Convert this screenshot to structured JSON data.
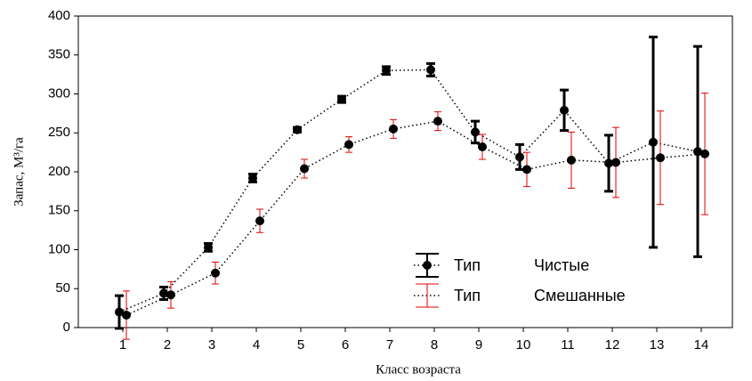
{
  "chart_data": {
    "type": "errorbar-line",
    "xlabel": "Класс возраста",
    "ylabel": "Запас, М³/га",
    "legend_title": "Тип",
    "x": [
      1,
      2,
      3,
      4,
      5,
      6,
      7,
      8,
      9,
      10,
      11,
      12,
      13,
      14
    ],
    "xlim": [
      0,
      14.7
    ],
    "xticks": [
      1,
      2,
      3,
      4,
      5,
      6,
      7,
      8,
      9,
      10,
      11,
      12,
      13,
      14
    ],
    "ylim": [
      0,
      400
    ],
    "yticks": [
      0,
      50,
      100,
      150,
      200,
      250,
      300,
      350,
      400
    ],
    "series": [
      {
        "name": "Чистые",
        "color": "#000000",
        "values": [
          20,
          44,
          103,
          192,
          254,
          293,
          330,
          331,
          251,
          219,
          279,
          211,
          238,
          226
        ],
        "errors": [
          21,
          8,
          5,
          5,
          3,
          4,
          5,
          8,
          14,
          16,
          26,
          36,
          135,
          135
        ]
      },
      {
        "name": "Смешанные",
        "color": "#e00000",
        "values": [
          16,
          42,
          70,
          137,
          204,
          235,
          255,
          265,
          232,
          203,
          215,
          212,
          218,
          223
        ],
        "errors": [
          31,
          17,
          14,
          15,
          12,
          10,
          12,
          12,
          16,
          22,
          36,
          45,
          60,
          78
        ]
      }
    ]
  }
}
